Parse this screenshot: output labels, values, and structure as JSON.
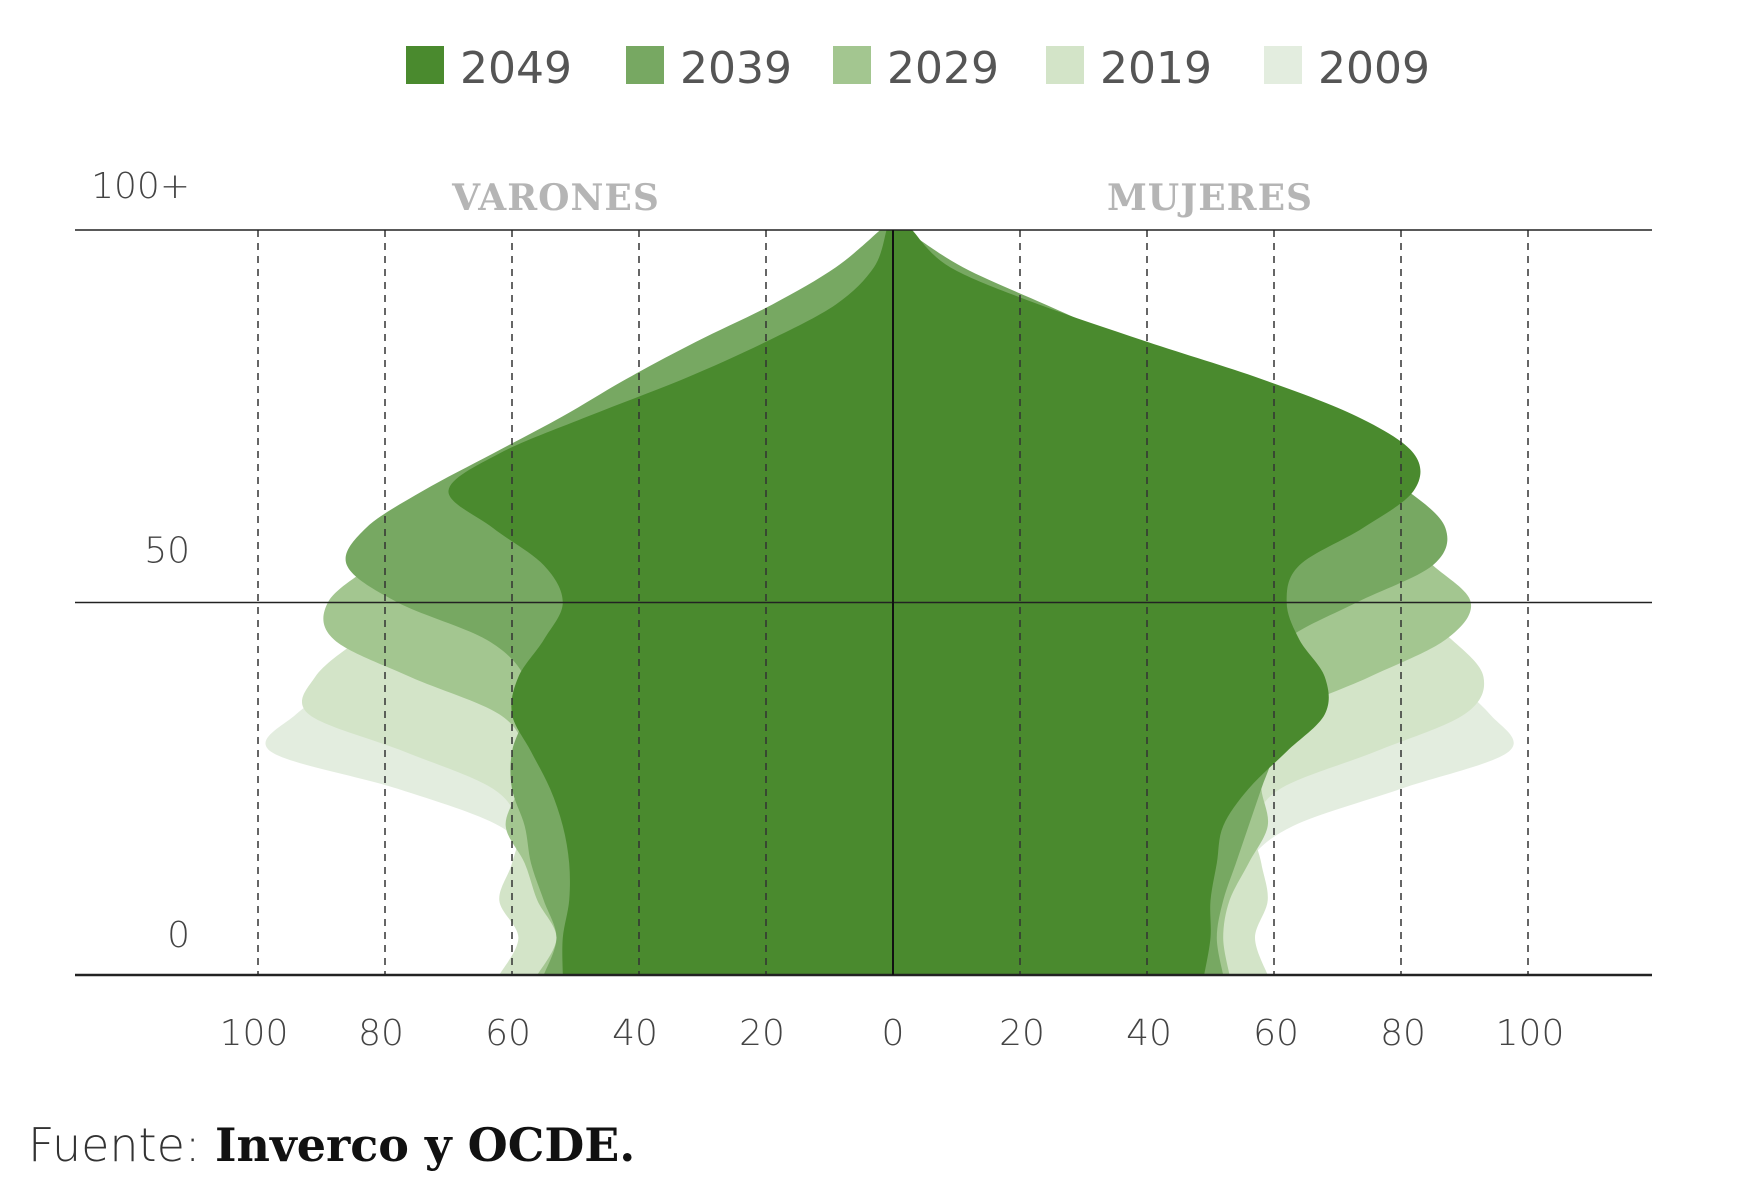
{
  "chart_data": {
    "type": "area",
    "title": "",
    "side_labels": {
      "left": "VARONES",
      "right": "MUJERES"
    },
    "y_tick_labels": [
      "100+",
      "50",
      "0"
    ],
    "x_tick_labels_left": [
      "100",
      "80",
      "60",
      "40",
      "20",
      "0"
    ],
    "x_tick_labels_right": [
      "20",
      "40",
      "60",
      "80",
      "100"
    ],
    "xlim": [
      0,
      120
    ],
    "ylim": [
      0,
      100
    ],
    "ages": [
      0,
      5,
      10,
      15,
      20,
      25,
      30,
      35,
      40,
      45,
      50,
      55,
      60,
      65,
      70,
      75,
      80,
      85,
      90,
      95,
      100
    ],
    "series": [
      {
        "name": "2009",
        "color": "#e3eddf",
        "men": [
          60,
          57,
          59,
          57,
          62,
          78,
          98,
          94,
          85,
          74,
          65,
          58,
          54,
          48,
          40,
          32,
          24,
          16,
          9,
          4,
          1
        ],
        "women": [
          57,
          55,
          57,
          56,
          63,
          80,
          97,
          94,
          87,
          77,
          69,
          63,
          59,
          54,
          47,
          40,
          32,
          22,
          13,
          6,
          1
        ]
      },
      {
        "name": "2019",
        "color": "#d3e4c8",
        "men": [
          62,
          59,
          62,
          60,
          59,
          63,
          77,
          92,
          91,
          84,
          74,
          65,
          58,
          52,
          45,
          37,
          28,
          19,
          11,
          5,
          1
        ],
        "women": [
          59,
          57,
          59,
          58,
          57,
          61,
          76,
          90,
          93,
          88,
          80,
          72,
          65,
          60,
          53,
          46,
          37,
          26,
          15,
          7,
          1
        ]
      },
      {
        "name": "2029",
        "color": "#a3c690",
        "men": [
          56,
          53,
          56,
          58,
          61,
          59,
          58,
          62,
          76,
          88,
          89,
          82,
          73,
          63,
          55,
          47,
          38,
          27,
          16,
          7,
          1
        ],
        "women": [
          53,
          52,
          53,
          56,
          59,
          58,
          58,
          62,
          75,
          87,
          91,
          85,
          78,
          70,
          62,
          54,
          45,
          33,
          20,
          9,
          2
        ]
      },
      {
        "name": "2039",
        "color": "#77a862",
        "men": [
          55,
          53,
          55,
          57,
          58,
          60,
          60,
          58,
          58,
          64,
          78,
          86,
          83,
          74,
          63,
          52,
          42,
          31,
          19,
          9,
          2
        ],
        "women": [
          52,
          51,
          52,
          54,
          56,
          58,
          60,
          60,
          60,
          62,
          73,
          85,
          87,
          81,
          71,
          60,
          49,
          37,
          24,
          11,
          2
        ]
      },
      {
        "name": "2049",
        "color": "#4a8a2e",
        "men": [
          52,
          52,
          51,
          51,
          52,
          54,
          57,
          60,
          59,
          55,
          52,
          55,
          63,
          70,
          62,
          48,
          33,
          20,
          9,
          3,
          1
        ],
        "women": [
          49,
          50,
          50,
          51,
          52,
          56,
          62,
          68,
          68,
          64,
          62,
          64,
          74,
          82,
          82,
          73,
          58,
          40,
          23,
          9,
          3
        ]
      }
    ],
    "legend_order": [
      "2049",
      "2039",
      "2029",
      "2019",
      "2009"
    ],
    "legend_position": "top",
    "grid": "vertical dashed"
  },
  "source": {
    "prefix": "Fuente: ",
    "text": "Inverco y OCDE."
  }
}
